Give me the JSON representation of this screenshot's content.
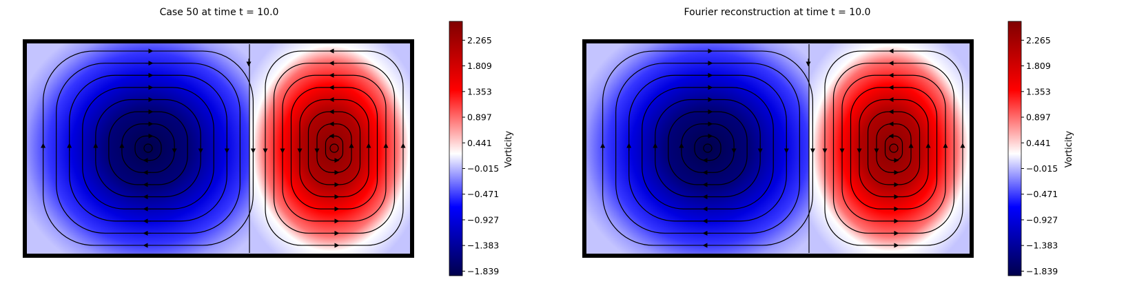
{
  "chart_data": [
    {
      "type": "heatmap",
      "title": "Case 50 at time t = 10.0",
      "overlay": "streamlines",
      "colormap": "seismic",
      "colorbar": {
        "label": "Vorticity",
        "ticks": [
          2.265,
          1.809,
          1.353,
          0.897,
          0.441,
          -0.015,
          -0.471,
          -0.927,
          -1.383,
          -1.839
        ],
        "tick_labels": [
          "2.265",
          "1.809",
          "1.353",
          "0.897",
          "0.441",
          "−0.015",
          "−0.471",
          "−0.927",
          "−1.383",
          "−1.839"
        ],
        "range": [
          -1.92,
          2.6
        ]
      },
      "vortices": [
        {
          "position": "left",
          "sign": "negative",
          "peak": -1.839,
          "rotation": "clockwise"
        },
        {
          "position": "right",
          "sign": "positive",
          "peak": 2.6,
          "rotation": "counterclockwise"
        }
      ],
      "colors": {
        "negative": "#00004c",
        "zero": "#ffffff",
        "positive": "#800000",
        "frame": "#000000"
      }
    },
    {
      "type": "heatmap",
      "title": "Fourier reconstruction at time t = 10.0",
      "overlay": "streamlines",
      "colormap": "seismic",
      "colorbar": {
        "label": "Vorticity",
        "ticks": [
          2.265,
          1.809,
          1.353,
          0.897,
          0.441,
          -0.015,
          -0.471,
          -0.927,
          -1.383,
          -1.839
        ],
        "tick_labels": [
          "2.265",
          "1.809",
          "1.353",
          "0.897",
          "0.441",
          "−0.015",
          "−0.471",
          "−0.927",
          "−1.383",
          "−1.839"
        ],
        "range": [
          -1.92,
          2.6
        ]
      },
      "vortices": [
        {
          "position": "left",
          "sign": "negative",
          "peak": -1.839,
          "rotation": "clockwise"
        },
        {
          "position": "right",
          "sign": "positive",
          "peak": 2.6,
          "rotation": "counterclockwise"
        }
      ],
      "colors": {
        "negative": "#00004c",
        "zero": "#ffffff",
        "positive": "#800000",
        "frame": "#000000"
      }
    }
  ]
}
